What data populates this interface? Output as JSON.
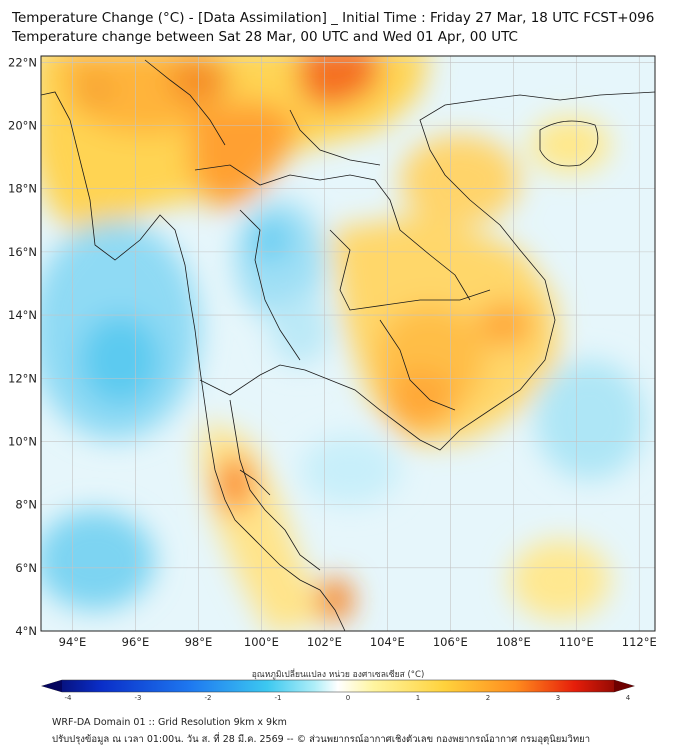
{
  "header": {
    "title_line1": "Temperature Change (°C) - [Data Assimilation] _ Initial Time : Friday 27 Mar, 18 UTC FCST+096",
    "title_line2": "Temperature change between Sat 28 Mar, 00 UTC and Wed 01 Apr, 00 UTC"
  },
  "map": {
    "lat_labels": [
      "22°N",
      "20°N",
      "18°N",
      "16°N",
      "14°N",
      "12°N",
      "10°N",
      "8°N",
      "6°N",
      "4°N"
    ],
    "lon_labels": [
      "94°E",
      "96°E",
      "98°E",
      "100°E",
      "102°E",
      "104°E",
      "106°E",
      "108°E",
      "110°E",
      "112°E"
    ],
    "grid_color": "#bfbfbf"
  },
  "colorbar": {
    "label": "อุณหภูมิเปลี่ยนแปลง หน่วย องศาเซลเซียส (°C)",
    "ticks": [
      "-4",
      "-3",
      "-2",
      "-1",
      "0",
      "1",
      "2",
      "3",
      "4"
    ],
    "colors": [
      "#05055e",
      "#0a2ec8",
      "#1e78f0",
      "#3cc8f0",
      "#aeeef8",
      "#ffffff",
      "#fff5a0",
      "#ffd23c",
      "#ff8c1e",
      "#e61e0a",
      "#6e0000"
    ]
  },
  "footer": {
    "line1": "WRF-DA Domain 01 :: Grid Resolution 9km x 9km",
    "line2": "ปรับปรุงข้อมูล ณ เวลา 01:00น. วัน ส. ที่ 28 มี.ค. 2569 -- © ส่วนพยากรณ์อากาศเชิงตัวเลข กองพยากรณ์อากาศ กรมอุตุนิยมวิทยา"
  }
}
